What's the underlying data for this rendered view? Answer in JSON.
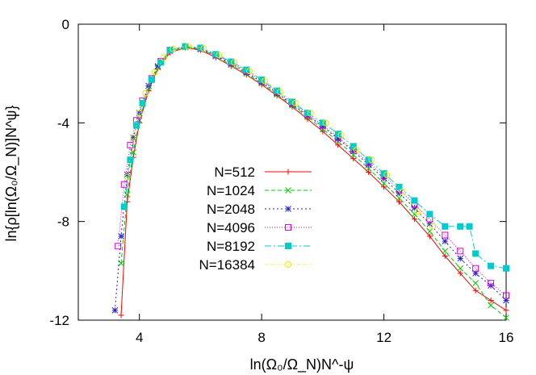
{
  "chart_data": {
    "type": "line",
    "xlabel": "ln(Ω₀/Ω_N)N^-ψ",
    "ylabel": "ln{ρ[ln(Ω₀/Ω_N)]N^ψ}",
    "xlim": [
      2,
      16
    ],
    "ylim": [
      -12,
      0
    ],
    "xticks": [
      4,
      8,
      12,
      16
    ],
    "yticks": [
      0,
      -4,
      -8,
      -12
    ],
    "grid": false,
    "legend_position": "center-left",
    "series": [
      {
        "name": "N=512",
        "color": "#ff0000",
        "marker": "plus",
        "dash": "",
        "x": [
          3.4,
          3.6,
          3.8,
          4.0,
          4.3,
          4.6,
          5.0,
          5.5,
          6.0,
          6.5,
          7.0,
          7.5,
          8.0,
          8.5,
          9.0,
          9.5,
          10.0,
          10.5,
          11.0,
          11.5,
          12.0,
          12.5,
          13.0,
          13.5,
          14.0,
          14.5,
          15.0,
          15.5,
          16.0
        ],
        "y": [
          -11.8,
          -7.2,
          -5.4,
          -4.0,
          -2.7,
          -1.8,
          -1.15,
          -0.95,
          -1.05,
          -1.35,
          -1.7,
          -2.05,
          -2.45,
          -2.9,
          -3.35,
          -3.85,
          -4.35,
          -4.9,
          -5.45,
          -6.0,
          -6.6,
          -7.2,
          -7.9,
          -8.6,
          -9.4,
          -10.1,
          -10.8,
          -11.2,
          -11.6
        ]
      },
      {
        "name": "N=1024",
        "color": "#00cc00",
        "marker": "cross",
        "dash": "5,3",
        "x": [
          3.4,
          3.6,
          3.8,
          4.0,
          4.3,
          4.6,
          5.0,
          5.5,
          6.0,
          6.5,
          7.0,
          7.5,
          8.0,
          8.5,
          9.0,
          9.5,
          10.0,
          10.5,
          11.0,
          11.5,
          12.0,
          12.5,
          13.0,
          13.5,
          14.0,
          14.5,
          15.0,
          15.5,
          16.0
        ],
        "y": [
          -9.7,
          -6.9,
          -5.2,
          -3.9,
          -2.6,
          -1.75,
          -1.1,
          -0.93,
          -1.02,
          -1.3,
          -1.65,
          -2.0,
          -2.4,
          -2.85,
          -3.3,
          -3.75,
          -4.25,
          -4.75,
          -5.3,
          -5.85,
          -6.45,
          -7.05,
          -7.7,
          -8.4,
          -9.2,
          -9.9,
          -10.5,
          -11.4,
          -11.9
        ]
      },
      {
        "name": "N=2048",
        "color": "#2222cc",
        "marker": "star",
        "dash": "2,3",
        "x": [
          3.2,
          3.4,
          3.6,
          3.8,
          4.0,
          4.3,
          4.6,
          5.0,
          5.5,
          6.0,
          6.5,
          7.0,
          7.5,
          8.0,
          8.5,
          9.0,
          9.5,
          10.0,
          10.5,
          11.0,
          11.5,
          12.0,
          12.5,
          13.0,
          13.5,
          14.0,
          14.5,
          15.0,
          15.5,
          16.0
        ],
        "y": [
          -11.6,
          -8.6,
          -6.1,
          -4.6,
          -3.6,
          -2.5,
          -1.7,
          -1.05,
          -0.92,
          -1.0,
          -1.28,
          -1.6,
          -1.95,
          -2.35,
          -2.8,
          -3.25,
          -3.7,
          -4.15,
          -4.65,
          -5.15,
          -5.7,
          -6.25,
          -6.85,
          -7.45,
          -8.1,
          -8.8,
          -9.5,
          -10.1,
          -10.6,
          -11.2
        ]
      },
      {
        "name": "N=4096",
        "color": "#dd00dd",
        "marker": "square",
        "dash": "1,2",
        "x": [
          3.3,
          3.5,
          3.7,
          3.9,
          4.1,
          4.4,
          4.7,
          5.0,
          5.5,
          6.0,
          6.5,
          7.0,
          7.5,
          8.0,
          8.5,
          9.0,
          9.5,
          10.0,
          10.5,
          11.0,
          11.5,
          12.0,
          12.5,
          13.0,
          13.5,
          14.0,
          14.5,
          15.0,
          15.5,
          16.0
        ],
        "y": [
          -9.0,
          -6.5,
          -4.9,
          -3.9,
          -3.1,
          -2.2,
          -1.5,
          -1.05,
          -0.9,
          -0.98,
          -1.25,
          -1.55,
          -1.9,
          -2.3,
          -2.75,
          -3.2,
          -3.65,
          -4.1,
          -4.6,
          -5.1,
          -5.6,
          -6.15,
          -6.7,
          -7.3,
          -7.9,
          -8.55,
          -9.2,
          -9.9,
          -10.5,
          -11.0
        ]
      },
      {
        "name": "N=8192",
        "color": "#00cccc",
        "marker": "filled-square",
        "dash": "8,3,2,3",
        "x": [
          3.5,
          3.7,
          3.9,
          4.1,
          4.4,
          4.7,
          5.0,
          5.5,
          6.0,
          6.5,
          7.0,
          7.5,
          8.0,
          8.5,
          9.0,
          9.5,
          10.0,
          10.5,
          11.0,
          11.5,
          12.0,
          12.5,
          13.0,
          13.5,
          14.0,
          14.5,
          14.8,
          15.0,
          15.5,
          16.0
        ],
        "y": [
          -7.4,
          -5.5,
          -4.1,
          -3.2,
          -2.25,
          -1.55,
          -1.05,
          -0.9,
          -0.96,
          -1.22,
          -1.52,
          -1.85,
          -2.25,
          -2.7,
          -3.15,
          -3.6,
          -4.0,
          -4.45,
          -4.95,
          -5.5,
          -6.05,
          -6.6,
          -7.15,
          -7.7,
          -8.2,
          -8.2,
          -8.2,
          -9.3,
          -9.8,
          -9.9
        ]
      },
      {
        "name": "N=16384",
        "color": "#e8e800",
        "marker": "circle",
        "dash": "1,3",
        "x": [
          3.6,
          3.8,
          4.0,
          4.2,
          4.5,
          4.8,
          5.1,
          5.6,
          6.1,
          6.6,
          7.1,
          7.6,
          8.1,
          8.6,
          9.1,
          9.6,
          10.1,
          10.6,
          11.1,
          11.6,
          12.1,
          12.6,
          13.1,
          13.6
        ],
        "y": [
          -6.2,
          -4.6,
          -3.6,
          -2.8,
          -1.95,
          -1.35,
          -1.0,
          -0.9,
          -0.98,
          -1.25,
          -1.55,
          -1.9,
          -2.3,
          -2.75,
          -3.2,
          -3.6,
          -4.0,
          -4.5,
          -5.1,
          -5.5,
          -6.1,
          -6.8,
          -7.6,
          -8.2
        ]
      }
    ]
  }
}
